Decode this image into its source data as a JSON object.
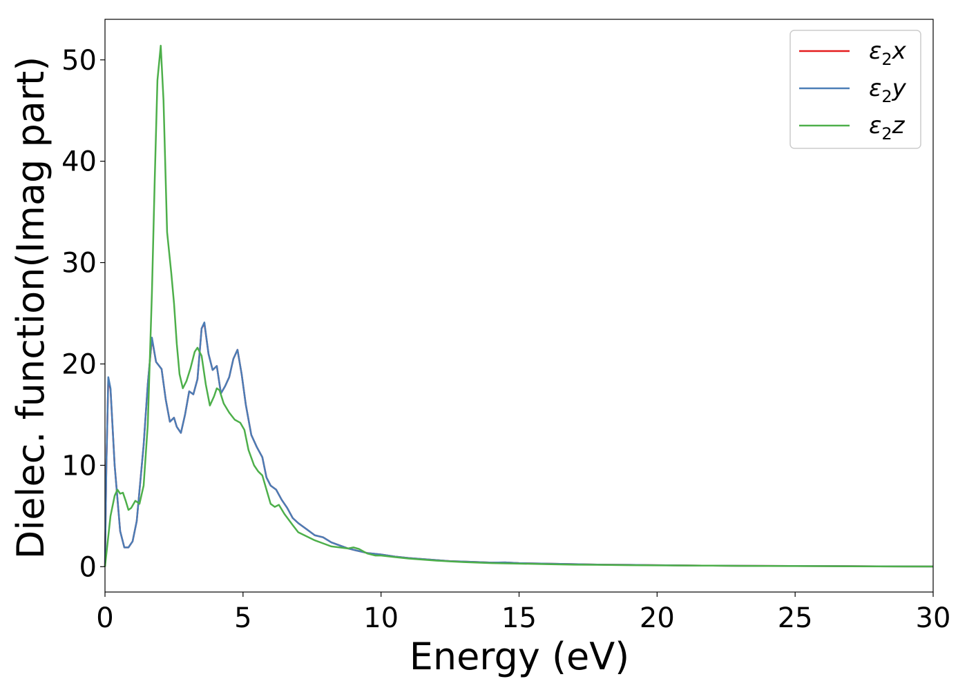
{
  "chart_data": {
    "type": "line",
    "xlabel": "Energy (eV)",
    "ylabel": "Dielec. function(Imag part)",
    "xlim": [
      0,
      30
    ],
    "ylim": [
      -2.5,
      54
    ],
    "xticks": [
      "0",
      "5",
      "10",
      "15",
      "20",
      "25",
      "30"
    ],
    "yticks": [
      "0",
      "10",
      "20",
      "30",
      "40",
      "50"
    ],
    "grid": false,
    "legend_position": "top-right",
    "series": [
      {
        "name": "ε2x",
        "legend_base": "ε",
        "legend_sub": "2",
        "legend_var": "x",
        "color": "#e41a1c",
        "points": [
          [
            0,
            0
          ],
          [
            0.05,
            10
          ],
          [
            0.12,
            18.5
          ],
          [
            0.2,
            17.5
          ],
          [
            0.35,
            10
          ],
          [
            0.55,
            3.5
          ],
          [
            0.7,
            1.9
          ],
          [
            0.85,
            1.9
          ],
          [
            1.0,
            2.5
          ],
          [
            1.15,
            4.5
          ],
          [
            1.4,
            12
          ],
          [
            1.55,
            18
          ],
          [
            1.7,
            22.5
          ],
          [
            1.85,
            20.2
          ],
          [
            2.05,
            19.5
          ],
          [
            2.2,
            16.5
          ],
          [
            2.35,
            14.3
          ],
          [
            2.5,
            14.7
          ],
          [
            2.6,
            13.8
          ],
          [
            2.75,
            13.2
          ],
          [
            2.9,
            15
          ],
          [
            3.05,
            17.3
          ],
          [
            3.2,
            17
          ],
          [
            3.35,
            18.5
          ],
          [
            3.5,
            23.5
          ],
          [
            3.6,
            24
          ],
          [
            3.75,
            21
          ],
          [
            3.9,
            19.4
          ],
          [
            4.05,
            19.8
          ],
          [
            4.2,
            17.1
          ],
          [
            4.35,
            17.8
          ],
          [
            4.5,
            18.7
          ],
          [
            4.65,
            20.5
          ],
          [
            4.8,
            21.4
          ],
          [
            4.95,
            19
          ],
          [
            5.1,
            16
          ],
          [
            5.3,
            13
          ],
          [
            5.5,
            11.8
          ],
          [
            5.7,
            10.8
          ],
          [
            5.85,
            8.8
          ],
          [
            6.0,
            8
          ],
          [
            6.2,
            7.6
          ],
          [
            6.4,
            6.6
          ],
          [
            6.6,
            5.8
          ],
          [
            6.8,
            4.8
          ],
          [
            7.0,
            4.3
          ],
          [
            7.3,
            3.7
          ],
          [
            7.6,
            3.1
          ],
          [
            7.9,
            2.9
          ],
          [
            8.2,
            2.4
          ],
          [
            8.5,
            2.1
          ],
          [
            8.8,
            1.8
          ],
          [
            9.1,
            1.6
          ],
          [
            9.5,
            1.35
          ],
          [
            10,
            1.2
          ],
          [
            10.5,
            1.0
          ],
          [
            11,
            0.85
          ],
          [
            11.5,
            0.75
          ],
          [
            12,
            0.65
          ],
          [
            12.5,
            0.55
          ],
          [
            13,
            0.5
          ],
          [
            13.5,
            0.45
          ],
          [
            14,
            0.4
          ],
          [
            14.5,
            0.42
          ],
          [
            15,
            0.35
          ],
          [
            16,
            0.3
          ],
          [
            17,
            0.25
          ],
          [
            18,
            0.2
          ],
          [
            19,
            0.18
          ],
          [
            20,
            0.15
          ],
          [
            21,
            0.12
          ],
          [
            22,
            0.1
          ],
          [
            23,
            0.09
          ],
          [
            24,
            0.08
          ],
          [
            25,
            0.07
          ],
          [
            26,
            0.06
          ],
          [
            27,
            0.05
          ],
          [
            28,
            0.04
          ],
          [
            29,
            0.03
          ],
          [
            30,
            0.02
          ]
        ]
      },
      {
        "name": "ε2y",
        "legend_base": "ε",
        "legend_sub": "2",
        "legend_var": "y",
        "color": "#4a7db6",
        "points": [
          [
            0,
            0
          ],
          [
            0.05,
            10
          ],
          [
            0.12,
            18.7
          ],
          [
            0.2,
            17.6
          ],
          [
            0.35,
            10
          ],
          [
            0.55,
            3.5
          ],
          [
            0.7,
            1.9
          ],
          [
            0.85,
            1.9
          ],
          [
            1.0,
            2.5
          ],
          [
            1.15,
            4.5
          ],
          [
            1.4,
            12
          ],
          [
            1.55,
            18
          ],
          [
            1.7,
            22.6
          ],
          [
            1.85,
            20.2
          ],
          [
            2.05,
            19.5
          ],
          [
            2.2,
            16.5
          ],
          [
            2.35,
            14.3
          ],
          [
            2.5,
            14.7
          ],
          [
            2.6,
            13.8
          ],
          [
            2.75,
            13.2
          ],
          [
            2.9,
            15
          ],
          [
            3.05,
            17.3
          ],
          [
            3.2,
            17
          ],
          [
            3.35,
            18.5
          ],
          [
            3.5,
            23.5
          ],
          [
            3.6,
            24.1
          ],
          [
            3.75,
            21
          ],
          [
            3.9,
            19.4
          ],
          [
            4.05,
            19.8
          ],
          [
            4.2,
            17.1
          ],
          [
            4.35,
            17.8
          ],
          [
            4.5,
            18.7
          ],
          [
            4.65,
            20.5
          ],
          [
            4.8,
            21.4
          ],
          [
            4.95,
            19
          ],
          [
            5.1,
            16
          ],
          [
            5.3,
            13
          ],
          [
            5.5,
            11.8
          ],
          [
            5.7,
            10.8
          ],
          [
            5.85,
            8.8
          ],
          [
            6.0,
            8
          ],
          [
            6.2,
            7.6
          ],
          [
            6.4,
            6.6
          ],
          [
            6.6,
            5.8
          ],
          [
            6.8,
            4.8
          ],
          [
            7.0,
            4.3
          ],
          [
            7.3,
            3.7
          ],
          [
            7.6,
            3.1
          ],
          [
            7.9,
            2.9
          ],
          [
            8.2,
            2.4
          ],
          [
            8.5,
            2.1
          ],
          [
            8.8,
            1.8
          ],
          [
            9.1,
            1.6
          ],
          [
            9.5,
            1.35
          ],
          [
            10,
            1.2
          ],
          [
            10.5,
            1.0
          ],
          [
            11,
            0.85
          ],
          [
            11.5,
            0.75
          ],
          [
            12,
            0.65
          ],
          [
            12.5,
            0.55
          ],
          [
            13,
            0.5
          ],
          [
            13.5,
            0.45
          ],
          [
            14,
            0.4
          ],
          [
            14.5,
            0.42
          ],
          [
            15,
            0.35
          ],
          [
            16,
            0.3
          ],
          [
            17,
            0.25
          ],
          [
            18,
            0.2
          ],
          [
            19,
            0.18
          ],
          [
            20,
            0.15
          ],
          [
            21,
            0.12
          ],
          [
            22,
            0.1
          ],
          [
            23,
            0.09
          ],
          [
            24,
            0.08
          ],
          [
            25,
            0.07
          ],
          [
            26,
            0.06
          ],
          [
            27,
            0.05
          ],
          [
            28,
            0.04
          ],
          [
            29,
            0.03
          ],
          [
            30,
            0.02
          ]
        ]
      },
      {
        "name": "ε2z",
        "legend_base": "ε",
        "legend_sub": "2",
        "legend_var": "z",
        "color": "#4daf4a",
        "points": [
          [
            0,
            0
          ],
          [
            0.1,
            2.5
          ],
          [
            0.2,
            5
          ],
          [
            0.35,
            7
          ],
          [
            0.45,
            7.6
          ],
          [
            0.55,
            7.2
          ],
          [
            0.65,
            7.3
          ],
          [
            0.75,
            6.5
          ],
          [
            0.85,
            5.6
          ],
          [
            0.95,
            5.8
          ],
          [
            1.1,
            6.5
          ],
          [
            1.25,
            6.2
          ],
          [
            1.4,
            8
          ],
          [
            1.55,
            14
          ],
          [
            1.7,
            27
          ],
          [
            1.8,
            38
          ],
          [
            1.9,
            48
          ],
          [
            2.02,
            51.4
          ],
          [
            2.12,
            46
          ],
          [
            2.25,
            33
          ],
          [
            2.4,
            29
          ],
          [
            2.5,
            26
          ],
          [
            2.6,
            22
          ],
          [
            2.7,
            19
          ],
          [
            2.82,
            17.6
          ],
          [
            2.95,
            18.3
          ],
          [
            3.1,
            19.6
          ],
          [
            3.25,
            21.2
          ],
          [
            3.35,
            21.6
          ],
          [
            3.5,
            20.8
          ],
          [
            3.65,
            18
          ],
          [
            3.8,
            15.9
          ],
          [
            3.95,
            16.8
          ],
          [
            4.05,
            17.6
          ],
          [
            4.15,
            17.4
          ],
          [
            4.3,
            16.1
          ],
          [
            4.5,
            15.2
          ],
          [
            4.7,
            14.5
          ],
          [
            4.9,
            14.2
          ],
          [
            5.05,
            13.5
          ],
          [
            5.2,
            11.5
          ],
          [
            5.4,
            10
          ],
          [
            5.55,
            9.4
          ],
          [
            5.7,
            9
          ],
          [
            5.85,
            7.6
          ],
          [
            6.0,
            6.2
          ],
          [
            6.15,
            5.9
          ],
          [
            6.3,
            6.1
          ],
          [
            6.5,
            5.2
          ],
          [
            6.8,
            4.1
          ],
          [
            7.0,
            3.4
          ],
          [
            7.3,
            3.0
          ],
          [
            7.6,
            2.6
          ],
          [
            7.9,
            2.3
          ],
          [
            8.2,
            2.0
          ],
          [
            8.5,
            1.9
          ],
          [
            8.8,
            1.8
          ],
          [
            9.0,
            1.9
          ],
          [
            9.2,
            1.75
          ],
          [
            9.5,
            1.3
          ],
          [
            9.8,
            1.1
          ],
          [
            10,
            1.1
          ],
          [
            10.5,
            0.95
          ],
          [
            11,
            0.8
          ],
          [
            11.5,
            0.7
          ],
          [
            12,
            0.6
          ],
          [
            12.5,
            0.52
          ],
          [
            13,
            0.45
          ],
          [
            13.5,
            0.4
          ],
          [
            14,
            0.35
          ],
          [
            15,
            0.3
          ],
          [
            16,
            0.25
          ],
          [
            17,
            0.2
          ],
          [
            18,
            0.18
          ],
          [
            19,
            0.15
          ],
          [
            20,
            0.13
          ],
          [
            21,
            0.11
          ],
          [
            22,
            0.1
          ],
          [
            23,
            0.08
          ],
          [
            24,
            0.07
          ],
          [
            25,
            0.06
          ],
          [
            26,
            0.05
          ],
          [
            27,
            0.04
          ],
          [
            28,
            0.03
          ],
          [
            29,
            0.02
          ],
          [
            30,
            0.02
          ]
        ]
      }
    ]
  }
}
